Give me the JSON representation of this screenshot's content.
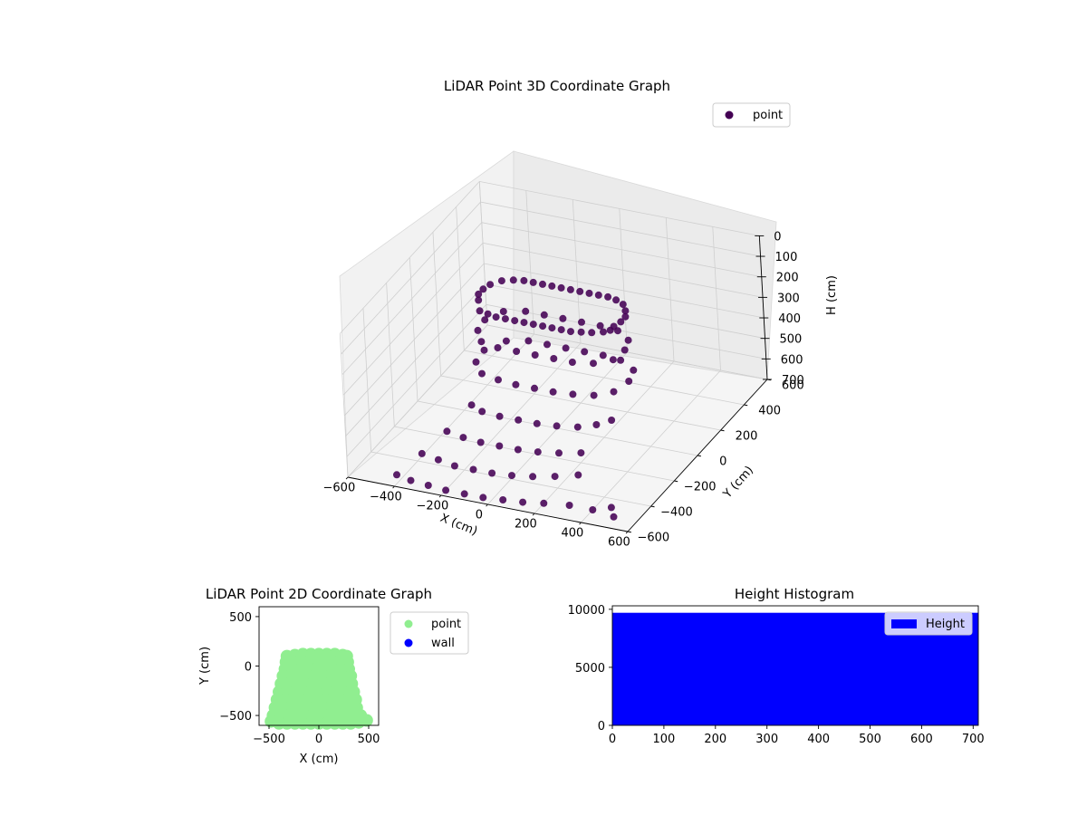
{
  "chart_data": [
    {
      "type": "scatter",
      "projection": "3d",
      "title": "LiDAR Point 3D Coordinate Graph",
      "xlabel": "X (cm)",
      "ylabel": "Y (cm)",
      "zlabel": "H (cm)",
      "xlim": [
        -600,
        600
      ],
      "ylim": [
        -600,
        600
      ],
      "zlim": [
        700,
        0
      ],
      "z_inverted": true,
      "xticks": [
        -600,
        -400,
        -200,
        0,
        200,
        400,
        600
      ],
      "yticks": [
        -600,
        -400,
        -200,
        0,
        200,
        400,
        600
      ],
      "zticks": [
        0,
        100,
        200,
        300,
        400,
        500,
        600,
        700
      ],
      "grid": true,
      "legend_position": "upper-right",
      "series": [
        {
          "name": "point",
          "color": "#440154",
          "points_xyh": [
            [
              -240,
              -130,
              100
            ],
            [
              -200,
              -140,
              100
            ],
            [
              -160,
              -150,
              100
            ],
            [
              -120,
              -150,
              100
            ],
            [
              -80,
              -150,
              100
            ],
            [
              -40,
              -150,
              100
            ],
            [
              0,
              -150,
              100
            ],
            [
              40,
              -150,
              100
            ],
            [
              80,
              -150,
              100
            ],
            [
              120,
              -150,
              100
            ],
            [
              160,
              -150,
              100
            ],
            [
              200,
              -140,
              100
            ],
            [
              240,
              -130,
              100
            ],
            [
              280,
              -110,
              100
            ],
            [
              300,
              -90,
              100
            ],
            [
              -280,
              -60,
              100
            ],
            [
              -300,
              -20,
              100
            ],
            [
              -300,
              20,
              100
            ],
            [
              -290,
              60,
              100
            ],
            [
              -260,
              100,
              100
            ],
            [
              -220,
              120,
              100
            ],
            [
              -180,
              130,
              100
            ],
            [
              -140,
              130,
              100
            ],
            [
              -100,
              130,
              100
            ],
            [
              -60,
              130,
              100
            ],
            [
              -20,
              130,
              100
            ],
            [
              20,
              130,
              100
            ],
            [
              60,
              130,
              100
            ],
            [
              100,
              130,
              100
            ],
            [
              140,
              130,
              100
            ],
            [
              180,
              130,
              100
            ],
            [
              220,
              120,
              100
            ],
            [
              260,
              100,
              100
            ],
            [
              290,
              60,
              100
            ],
            [
              310,
              20,
              100
            ],
            [
              310,
              -20,
              100
            ],
            [
              300,
              -60,
              100
            ],
            [
              -240,
              -130,
              250
            ],
            [
              -160,
              -150,
              250
            ],
            [
              -80,
              -150,
              250
            ],
            [
              0,
              -150,
              250
            ],
            [
              80,
              -150,
              250
            ],
            [
              160,
              -150,
              250
            ],
            [
              240,
              -130,
              250
            ],
            [
              300,
              -80,
              250
            ],
            [
              310,
              0,
              250
            ],
            [
              290,
              70,
              250
            ],
            [
              220,
              120,
              250
            ],
            [
              140,
              130,
              250
            ],
            [
              60,
              130,
              250
            ],
            [
              -20,
              130,
              250
            ],
            [
              -100,
              130,
              250
            ],
            [
              -180,
              130,
              250
            ],
            [
              -260,
              100,
              250
            ],
            [
              -300,
              20,
              250
            ],
            [
              -290,
              -60,
              250
            ],
            [
              -240,
              -140,
              400
            ],
            [
              -160,
              -160,
              400
            ],
            [
              -80,
              -170,
              400
            ],
            [
              0,
              -170,
              400
            ],
            [
              80,
              -170,
              400
            ],
            [
              160,
              -160,
              400
            ],
            [
              240,
              -140,
              400
            ],
            [
              300,
              -90,
              400
            ],
            [
              320,
              0,
              400
            ],
            [
              300,
              80,
              400
            ],
            [
              220,
              130,
              400
            ],
            [
              140,
              140,
              400
            ],
            [
              60,
              140,
              400
            ],
            [
              -20,
              140,
              400
            ],
            [
              -100,
              140,
              400
            ],
            [
              -180,
              140,
              400
            ],
            [
              -260,
              110,
              400
            ],
            [
              -310,
              20,
              400
            ],
            [
              -300,
              -70,
              400
            ],
            [
              -260,
              -200,
              520
            ],
            [
              -200,
              -230,
              520
            ],
            [
              -120,
              -240,
              520
            ],
            [
              -40,
              -240,
              520
            ],
            [
              40,
              -240,
              520
            ],
            [
              120,
              -230,
              520
            ],
            [
              200,
              -210,
              520
            ],
            [
              260,
              -170,
              520
            ],
            [
              300,
              -120,
              520
            ],
            [
              -320,
              -300,
              600
            ],
            [
              -240,
              -320,
              600
            ],
            [
              -160,
              -330,
              600
            ],
            [
              -80,
              -330,
              600
            ],
            [
              0,
              -330,
              600
            ],
            [
              80,
              -320,
              600
            ],
            [
              160,
              -300,
              600
            ],
            [
              240,
              -270,
              600
            ],
            [
              -380,
              -400,
              660
            ],
            [
              -300,
              -420,
              660
            ],
            [
              -220,
              -440,
              660
            ],
            [
              -140,
              -440,
              660
            ],
            [
              -60,
              -440,
              660
            ],
            [
              20,
              -430,
              660
            ],
            [
              100,
              -410,
              660
            ],
            [
              180,
              -380,
              660
            ],
            [
              260,
              -340,
              660
            ],
            [
              -430,
              -520,
              700
            ],
            [
              -360,
              -540,
              700
            ],
            [
              -280,
              -550,
              700
            ],
            [
              -200,
              -560,
              700
            ],
            [
              -120,
              -560,
              700
            ],
            [
              -40,
              -560,
              700
            ],
            [
              40,
              -550,
              700
            ],
            [
              120,
              -540,
              700
            ],
            [
              200,
              -520,
              700
            ],
            [
              300,
              -500,
              700
            ],
            [
              400,
              -500,
              700
            ],
            [
              460,
              -460,
              700
            ],
            [
              500,
              -520,
              700
            ]
          ]
        }
      ]
    },
    {
      "type": "scatter",
      "title": "LiDAR Point 2D Coordinate Graph",
      "xlabel": "X (cm)",
      "ylabel": "Y (cm)",
      "xlim": [
        -600,
        600
      ],
      "ylim": [
        -600,
        600
      ],
      "xticks": [
        -500,
        0,
        500
      ],
      "yticks": [
        -500,
        0,
        500
      ],
      "legend_position": "outside-right",
      "series": [
        {
          "name": "point",
          "color": "#90ee90",
          "points": [
            [
              -320,
              100
            ],
            [
              -240,
              110
            ],
            [
              -160,
              120
            ],
            [
              -80,
              120
            ],
            [
              0,
              120
            ],
            [
              80,
              120
            ],
            [
              160,
              120
            ],
            [
              240,
              110
            ],
            [
              280,
              100
            ],
            [
              -330,
              40
            ],
            [
              -250,
              40
            ],
            [
              -170,
              40
            ],
            [
              -90,
              40
            ],
            [
              -10,
              40
            ],
            [
              70,
              40
            ],
            [
              150,
              40
            ],
            [
              230,
              40
            ],
            [
              290,
              40
            ],
            [
              -340,
              -30
            ],
            [
              -260,
              -30
            ],
            [
              -180,
              -30
            ],
            [
              -100,
              -30
            ],
            [
              -20,
              -30
            ],
            [
              60,
              -30
            ],
            [
              140,
              -30
            ],
            [
              220,
              -30
            ],
            [
              300,
              -30
            ],
            [
              -360,
              -100
            ],
            [
              -280,
              -100
            ],
            [
              -200,
              -100
            ],
            [
              -120,
              -100
            ],
            [
              -40,
              -100
            ],
            [
              40,
              -100
            ],
            [
              120,
              -100
            ],
            [
              200,
              -100
            ],
            [
              280,
              -100
            ],
            [
              320,
              -100
            ],
            [
              -380,
              -180
            ],
            [
              -300,
              -180
            ],
            [
              -220,
              -180
            ],
            [
              -140,
              -180
            ],
            [
              -60,
              -180
            ],
            [
              20,
              -180
            ],
            [
              100,
              -180
            ],
            [
              180,
              -180
            ],
            [
              260,
              -180
            ],
            [
              330,
              -180
            ],
            [
              -400,
              -260
            ],
            [
              -320,
              -260
            ],
            [
              -240,
              -260
            ],
            [
              -160,
              -260
            ],
            [
              -80,
              -260
            ],
            [
              0,
              -260
            ],
            [
              80,
              -260
            ],
            [
              160,
              -260
            ],
            [
              240,
              -260
            ],
            [
              320,
              -260
            ],
            [
              350,
              -260
            ],
            [
              -420,
              -340
            ],
            [
              -340,
              -340
            ],
            [
              -260,
              -340
            ],
            [
              -180,
              -340
            ],
            [
              -100,
              -340
            ],
            [
              -20,
              -340
            ],
            [
              60,
              -340
            ],
            [
              140,
              -340
            ],
            [
              220,
              -340
            ],
            [
              300,
              -340
            ],
            [
              370,
              -340
            ],
            [
              -440,
              -420
            ],
            [
              -360,
              -420
            ],
            [
              -280,
              -420
            ],
            [
              -200,
              -420
            ],
            [
              -120,
              -420
            ],
            [
              -40,
              -420
            ],
            [
              40,
              -420
            ],
            [
              120,
              -420
            ],
            [
              200,
              -420
            ],
            [
              280,
              -420
            ],
            [
              380,
              -420
            ],
            [
              -460,
              -500
            ],
            [
              -380,
              -500
            ],
            [
              -300,
              -500
            ],
            [
              -220,
              -500
            ],
            [
              -140,
              -500
            ],
            [
              -60,
              -500
            ],
            [
              20,
              -500
            ],
            [
              100,
              -500
            ],
            [
              180,
              -500
            ],
            [
              260,
              -500
            ],
            [
              340,
              -500
            ],
            [
              420,
              -500
            ],
            [
              -480,
              -560
            ],
            [
              -400,
              -580
            ],
            [
              -320,
              -580
            ],
            [
              -240,
              -580
            ],
            [
              -160,
              -580
            ],
            [
              -80,
              -580
            ],
            [
              0,
              -580
            ],
            [
              80,
              -580
            ],
            [
              160,
              -580
            ],
            [
              240,
              -580
            ],
            [
              320,
              -580
            ],
            [
              400,
              -570
            ],
            [
              480,
              -550
            ]
          ]
        },
        {
          "name": "wall",
          "color": "#0000ff",
          "points": []
        }
      ]
    },
    {
      "type": "bar",
      "histogram": true,
      "title": "Height Histogram",
      "xlim": [
        0,
        710
      ],
      "ylim": [
        0,
        10300
      ],
      "xticks": [
        0,
        100,
        200,
        300,
        400,
        500,
        600,
        700
      ],
      "yticks": [
        0,
        5000,
        10000
      ],
      "legend_position": "upper-right",
      "series": [
        {
          "name": "Height",
          "color": "#0000ff",
          "bins": [
            [
              0,
              710,
              9700
            ]
          ]
        }
      ]
    }
  ]
}
